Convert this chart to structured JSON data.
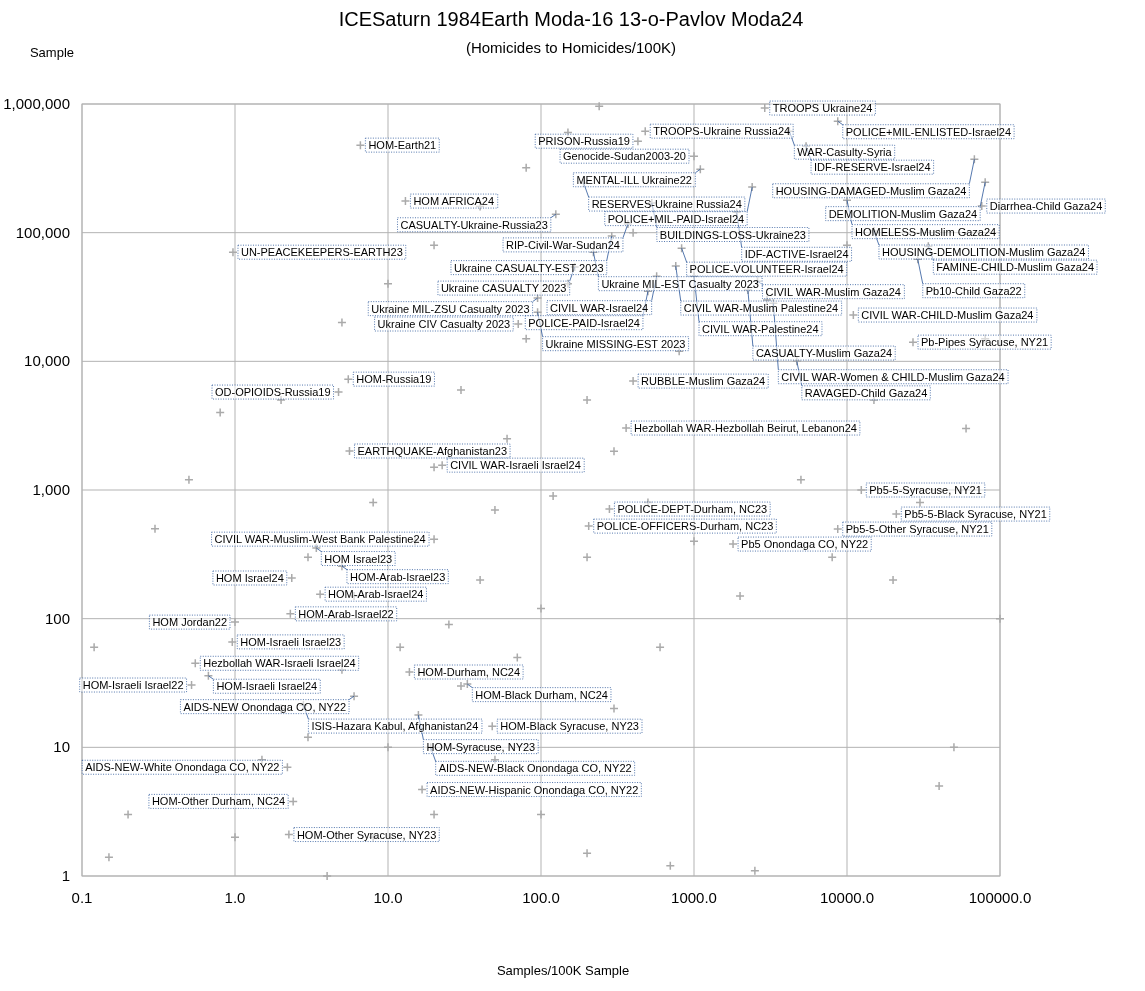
{
  "chart_data": {
    "type": "scatter",
    "title": "ICESaturn 1984Earth Moda-16 13-o-Pavlov Moda24",
    "subtitle": "(Homicides to Homicides/100K)",
    "xlabel": "Samples/100K Sample",
    "ylabel": "Sample",
    "log": "xy",
    "grid": true,
    "marker": "cross",
    "xlim": [
      0.1,
      100000
    ],
    "ylim": [
      1,
      1000000
    ],
    "xticks": [
      {
        "value": 0.1,
        "label": "0.1"
      },
      {
        "value": 1,
        "label": "1.0"
      },
      {
        "value": 10,
        "label": "10.0"
      },
      {
        "value": 100,
        "label": "100.0"
      },
      {
        "value": 1000,
        "label": "1000.0"
      },
      {
        "value": 10000,
        "label": "10000.0"
      },
      {
        "value": 100000,
        "label": "100000.0"
      }
    ],
    "yticks": [
      {
        "value": 1,
        "label": "1"
      },
      {
        "value": 10,
        "label": "10"
      },
      {
        "value": 100,
        "label": "100"
      },
      {
        "value": 1000,
        "label": "1,000"
      },
      {
        "value": 10000,
        "label": "10,000"
      },
      {
        "value": 100000,
        "label": "100,000"
      },
      {
        "value": 1000000,
        "label": "1,000,000"
      }
    ],
    "series": [
      {
        "color": "#aaaaaa",
        "x": [
          2900,
          8700,
          480,
          4200,
          430,
          6.6,
          5400,
          1000,
          68000,
          1100,
          80000,
          190,
          2400,
          13,
          530,
          10000,
          76000,
          125,
          1900,
          370,
          15000,
          290,
          34000,
          0.97,
          830,
          220,
          29000,
          166,
          760,
          570,
          1000,
          2600,
          2250,
          500,
          95,
          3300,
          95,
          11000,
          71,
          27000,
          4700,
          5.5,
          4.75,
          400,
          360,
          5.6,
          22.6,
          12400,
          280,
          21000,
          205,
          8700,
          20,
          1800,
          3.4,
          5,
          2.35,
          3.6,
          2.3,
          1,
          0.96,
          0.55,
          0.67,
          0.52,
          13.8,
          33,
          6,
          2.8,
          15.8,
          48,
          19,
          2.2,
          16.7,
          2.4,
          2.25,
          5,
          10,
          20,
          40,
          80,
          150,
          240,
          0.12,
          0.15,
          0.2,
          0.3,
          0.5,
          0.8,
          1,
          1.5,
          2,
          2,
          3,
          3,
          4,
          5,
          6,
          8,
          8,
          10,
          12,
          15,
          20,
          20,
          25,
          30,
          30,
          40,
          50,
          50,
          60,
          70,
          80,
          100,
          100,
          120,
          150,
          200,
          200,
          300,
          300,
          400,
          500,
          600,
          800,
          1000,
          1500,
          2000,
          3000,
          5000,
          8000,
          10000,
          15000,
          20000,
          30000,
          50000,
          60000,
          80000,
          100000,
          40000,
          200,
          700,
          2500
        ],
        "values": [
          930000,
          735000,
          615000,
          615000,
          514000,
          479000,
          470000,
          393000,
          372000,
          311000,
          247000,
          243000,
          226000,
          176000,
          170000,
          179000,
          161000,
          139000,
          144000,
          117000,
          103000,
          94000,
          78500,
          70500,
          75800,
          70500,
          62200,
          54000,
          55000,
          45900,
          45900,
          42000,
          35800,
          35100,
          31000,
          28300,
          24100,
          22900,
          19500,
          14100,
          10000,
          7270,
          5770,
          7020,
          3030,
          2010,
          1560,
          1000,
          711,
          650,
          524,
          497,
          415,
          380,
          354,
          256,
          207,
          155,
          109,
          94,
          66,
          45,
          36,
          30.5,
          38.5,
          31,
          25,
          21.3,
          17.8,
          14.6,
          10,
          7,
          4.7,
          3.8,
          2.1,
          20000,
          40000,
          80000,
          160000,
          320000,
          600000,
          960000,
          60,
          1.4,
          3,
          500,
          1200,
          4000,
          2,
          8,
          20,
          5000,
          12,
          300,
          1,
          40,
          150,
          2,
          800,
          10,
          60,
          400,
          3,
          1500,
          90,
          30,
          6000,
          200,
          8,
          700,
          2500,
          50,
          15000,
          120,
          3,
          900,
          40000,
          300,
          5000,
          20,
          2000,
          100000,
          800,
          60,
          12000,
          400,
          3000,
          150,
          30000,
          1200,
          300,
          80000,
          5000,
          200,
          800,
          10,
          3000,
          15000,
          100,
          5,
          1.5,
          1.2,
          1.1
        ]
      }
    ],
    "annotations": [
      {
        "text": "TROOPS Ukraine24",
        "x": 2900,
        "y": 930000
      },
      {
        "text": "POLICE+MIL-ENLISTED-Israel24",
        "x": 8700,
        "y": 735000
      },
      {
        "text": "TROOPS-Ukraine Russia24",
        "x": 480,
        "y": 615000
      },
      {
        "text": "WAR-Casulty-Syria",
        "x": 4200,
        "y": 615000
      },
      {
        "text": "PRISON-Russia19",
        "x": 430,
        "y": 514000
      },
      {
        "text": "HOM-Earth21",
        "x": 6.6,
        "y": 479000
      },
      {
        "text": "IDF-RESERVE-Israel24",
        "x": 5400,
        "y": 470000
      },
      {
        "text": "Genocide-Sudan2003-20",
        "x": 1000,
        "y": 393000
      },
      {
        "text": "HOUSING-DAMAGED-Muslim Gaza24",
        "x": 68000,
        "y": 372000
      },
      {
        "text": "MENTAL-ILL Ukraine22",
        "x": 1100,
        "y": 311000
      },
      {
        "text": "DEMOLITION-Muslim Gaza24",
        "x": 80000,
        "y": 247000
      },
      {
        "text": "RESERVES-Ukraine Russia24",
        "x": 190,
        "y": 243000
      },
      {
        "text": "POLICE+MIL-PAID-Israel24",
        "x": 2400,
        "y": 226000
      },
      {
        "text": "HOM AFRICA24",
        "x": 13,
        "y": 176000
      },
      {
        "text": "BUILDINGS-LOSS-Ukraine23",
        "x": 530,
        "y": 170000
      },
      {
        "text": "HOMELESS-Muslim Gaza24",
        "x": 10000,
        "y": 179000
      },
      {
        "text": "Diarrhea-Child Gaza24",
        "x": 76000,
        "y": 161000
      },
      {
        "text": "CASUALTY-Ukraine-Russia23",
        "x": 125,
        "y": 139000
      },
      {
        "text": "IDF-ACTIVE-Israel24",
        "x": 1900,
        "y": 144000
      },
      {
        "text": "RIP-Civil-War-Sudan24",
        "x": 370,
        "y": 117000
      },
      {
        "text": "HOUSING-DEMOLITION-Muslim Gaza24",
        "x": 15000,
        "y": 103000
      },
      {
        "text": "Ukraine CASUALTY-EST 2023",
        "x": 290,
        "y": 94000
      },
      {
        "text": "FAMINE-CHILD-Muslim Gaza24",
        "x": 34000,
        "y": 78500
      },
      {
        "text": "UN-PEACEKEEPERS-EARTH23",
        "x": 0.97,
        "y": 70500
      },
      {
        "text": "POLICE-VOLUNTEER-Israel24",
        "x": 830,
        "y": 75800
      },
      {
        "text": "Ukraine MIL-EST Casualty 2023",
        "x": 220,
        "y": 70500
      },
      {
        "text": "Pb10-Child Gaza22",
        "x": 29000,
        "y": 62200
      },
      {
        "text": "Ukraine CASUALTY 2023",
        "x": 166,
        "y": 54000
      },
      {
        "text": "CIVIL WAR-Muslim Palestine24",
        "x": 760,
        "y": 55000
      },
      {
        "text": "CIVIL WAR-Israel24",
        "x": 570,
        "y": 45900
      },
      {
        "text": "CIVIL WAR-Palestine24",
        "x": 1000,
        "y": 45900
      },
      {
        "text": "CIVIL WAR-Muslim Gaza24",
        "x": 2600,
        "y": 42000
      },
      {
        "text": "CASUALTY-Muslim Gaza24",
        "x": 2250,
        "y": 35800
      },
      {
        "text": "POLICE-PAID-Israel24",
        "x": 500,
        "y": 35100
      },
      {
        "text": "Ukraine MIL-ZSU Casualty 2023",
        "x": 95,
        "y": 31000
      },
      {
        "text": "CIVIL WAR-Women & CHILD-Muslim Gaza24",
        "x": 3300,
        "y": 28300
      },
      {
        "text": "Ukraine MISSING-EST 2023",
        "x": 95,
        "y": 24100
      },
      {
        "text": "CIVIL WAR-CHILD-Muslim Gaza24",
        "x": 11000,
        "y": 22900
      },
      {
        "text": "Ukraine CIV Casualty 2023",
        "x": 71,
        "y": 19500
      },
      {
        "text": "Pb-Pipes Syracuse, NY21",
        "x": 27000,
        "y": 14100
      },
      {
        "text": "RAVAGED-Child Gaza24",
        "x": 4700,
        "y": 10000
      },
      {
        "text": "HOM-Russia19",
        "x": 5.5,
        "y": 7270
      },
      {
        "text": "OD-OPIOIDS-Russia19",
        "x": 4.75,
        "y": 5770
      },
      {
        "text": "RUBBLE-Muslim Gaza24",
        "x": 400,
        "y": 7020
      },
      {
        "text": "Hezbollah WAR-Hezbollah Beirut, Lebanon24",
        "x": 360,
        "y": 3030
      },
      {
        "text": "EARTHQUAKE-Afghanistan23",
        "x": 5.6,
        "y": 2010
      },
      {
        "text": "CIVIL WAR-Israeli Israel24",
        "x": 22.6,
        "y": 1560
      },
      {
        "text": "Pb5-5-Syracuse, NY21",
        "x": 12400,
        "y": 1000
      },
      {
        "text": "POLICE-DEPT-Durham, NC23",
        "x": 280,
        "y": 711
      },
      {
        "text": "Pb5-5-Black Syracuse, NY21",
        "x": 21000,
        "y": 650
      },
      {
        "text": "POLICE-OFFICERS-Durham, NC23",
        "x": 205,
        "y": 524
      },
      {
        "text": "Pb5-5-Other Syracuse, NY21",
        "x": 8700,
        "y": 497
      },
      {
        "text": "CIVIL WAR-Muslim-West Bank Palestine24",
        "x": 20,
        "y": 415
      },
      {
        "text": "Pb5 Onondaga CO, NY22",
        "x": 1800,
        "y": 380
      },
      {
        "text": "HOM Israel23",
        "x": 3.4,
        "y": 354
      },
      {
        "text": "HOM-Arab-Israel23",
        "x": 5,
        "y": 256
      },
      {
        "text": "HOM Israel24",
        "x": 2.35,
        "y": 207
      },
      {
        "text": "HOM-Arab-Israel24",
        "x": 3.6,
        "y": 155
      },
      {
        "text": "HOM-Arab-Israel22",
        "x": 2.3,
        "y": 109
      },
      {
        "text": "HOM Jordan22",
        "x": 1,
        "y": 94
      },
      {
        "text": "HOM-Israeli Israel23",
        "x": 0.96,
        "y": 66
      },
      {
        "text": "Hezbollah WAR-Israeli Israel24",
        "x": 0.55,
        "y": 45
      },
      {
        "text": "HOM-Israeli Israel24",
        "x": 0.67,
        "y": 36
      },
      {
        "text": "HOM-Israeli Israel22",
        "x": 0.52,
        "y": 30.5
      },
      {
        "text": "HOM-Durham, NC24",
        "x": 13.8,
        "y": 38.5
      },
      {
        "text": "HOM-Black Durham, NC24",
        "x": 33,
        "y": 31
      },
      {
        "text": "AIDS-NEW Onondaga CO, NY22",
        "x": 6,
        "y": 25
      },
      {
        "text": "ISIS-Hazara Kabul, Afghanistan24",
        "x": 2.8,
        "y": 21.3
      },
      {
        "text": "HOM-Syracuse, NY23",
        "x": 15.8,
        "y": 17.8
      },
      {
        "text": "HOM-Black Syracuse, NY23",
        "x": 48,
        "y": 14.6
      },
      {
        "text": "AIDS-NEW-Black Onondaga CO, NY22",
        "x": 19,
        "y": 10
      },
      {
        "text": "AIDS-NEW-White Onondaga CO, NY22",
        "x": 2.2,
        "y": 7
      },
      {
        "text": "AIDS-NEW-Hispanic Onondaga CO, NY22",
        "x": 16.7,
        "y": 4.7
      },
      {
        "text": "HOM-Other Durham, NC24",
        "x": 2.4,
        "y": 3.8
      },
      {
        "text": "HOM-Other Syracuse, NY23",
        "x": 2.25,
        "y": 2.1
      }
    ]
  }
}
